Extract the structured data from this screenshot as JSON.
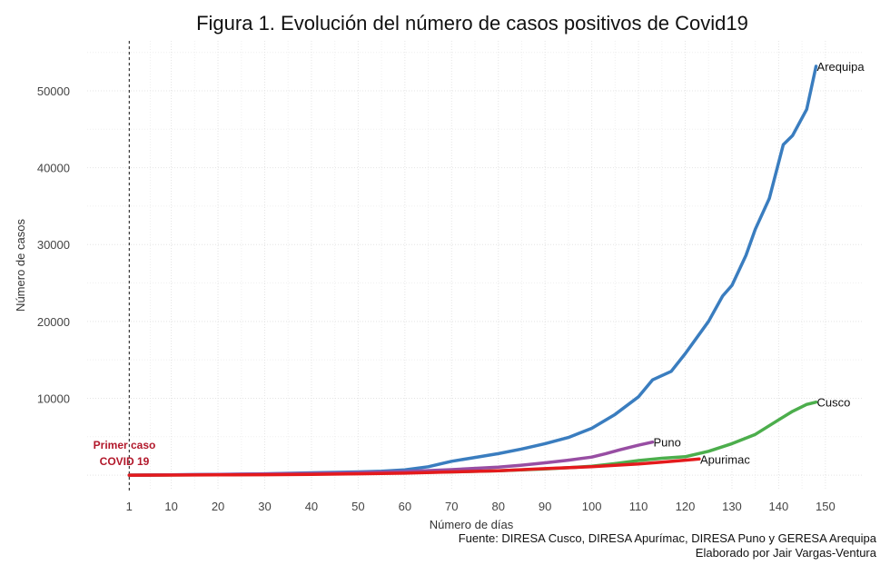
{
  "chart_data": {
    "type": "line",
    "title": "Figura 1. Evolución del número de casos positivos de Covid19",
    "xlabel": "Número de días",
    "ylabel": "Número de casos",
    "xlim": [
      -8,
      158
    ],
    "ylim": [
      -2000,
      56500
    ],
    "x_ticks": [
      1,
      10,
      20,
      30,
      40,
      50,
      60,
      70,
      80,
      90,
      100,
      110,
      120,
      130,
      140,
      150
    ],
    "y_ticks": [
      10000,
      20000,
      30000,
      40000,
      50000
    ],
    "grid": true,
    "legend": "none",
    "annotation": {
      "x": 1,
      "lines": [
        "Primer caso",
        "COVID 19"
      ],
      "color": "#b2182b"
    },
    "caption": [
      "Fuente: DIRESA Cusco, DIRESA Apurímac, DIRESA Puno y GERESA Arequipa",
      "Elaborado por Jair Vargas-Ventura"
    ],
    "series": [
      {
        "name": "Arequipa",
        "color": "#3a7dbf",
        "x": [
          1,
          10,
          20,
          30,
          40,
          50,
          55,
          60,
          65,
          70,
          75,
          80,
          85,
          90,
          95,
          100,
          105,
          110,
          113,
          117,
          120,
          125,
          128,
          130,
          133,
          135,
          138,
          141,
          143,
          146,
          148
        ],
        "y": [
          0,
          30,
          90,
          180,
          300,
          420,
          520,
          700,
          1100,
          1800,
          2300,
          2800,
          3400,
          4100,
          4900,
          6100,
          7900,
          10200,
          12400,
          13500,
          15800,
          20000,
          23300,
          24700,
          28600,
          32000,
          36000,
          43000,
          44200,
          47600,
          53200
        ]
      },
      {
        "name": "Cusco",
        "color": "#4cae4c",
        "x": [
          1,
          10,
          20,
          30,
          40,
          50,
          60,
          70,
          80,
          90,
          100,
          105,
          110,
          115,
          120,
          125,
          130,
          135,
          140,
          143,
          146,
          148
        ],
        "y": [
          0,
          20,
          60,
          110,
          160,
          220,
          320,
          420,
          560,
          800,
          1150,
          1500,
          1900,
          2200,
          2400,
          3100,
          4100,
          5300,
          7200,
          8300,
          9200,
          9500
        ]
      },
      {
        "name": "Puno",
        "color": "#984ea3",
        "x": [
          1,
          10,
          20,
          30,
          40,
          50,
          60,
          70,
          80,
          85,
          90,
          95,
          100,
          103,
          106,
          110,
          113
        ],
        "y": [
          0,
          30,
          90,
          150,
          220,
          320,
          470,
          720,
          1050,
          1300,
          1600,
          1950,
          2350,
          2800,
          3300,
          3900,
          4300
        ]
      },
      {
        "name": "Apurimac",
        "color": "#e41a1c",
        "x": [
          1,
          10,
          20,
          30,
          40,
          50,
          60,
          70,
          80,
          90,
          100,
          110,
          115,
          120,
          123
        ],
        "y": [
          0,
          10,
          30,
          60,
          100,
          170,
          260,
          420,
          580,
          850,
          1100,
          1450,
          1700,
          1950,
          2100
        ]
      }
    ]
  }
}
